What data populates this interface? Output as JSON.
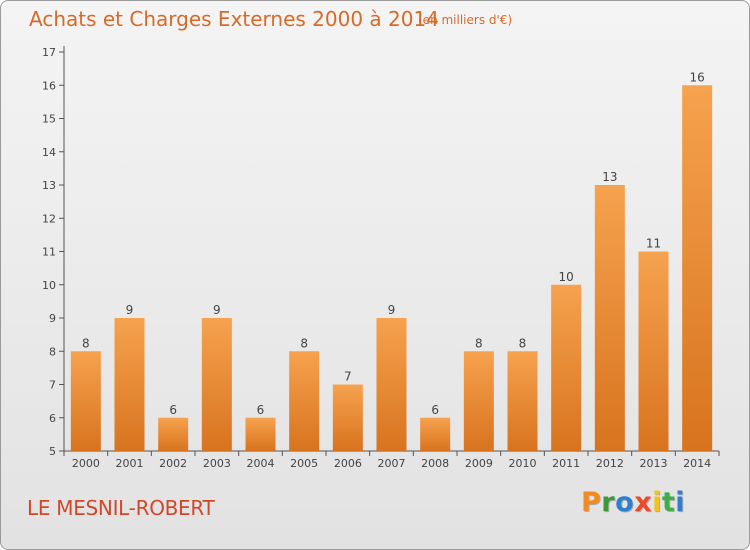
{
  "chart_data": {
    "type": "bar",
    "title": "Achats et Charges Externes 2000 à 2014",
    "subtitle": "(en milliers d'€)",
    "categories": [
      "2000",
      "2001",
      "2002",
      "2003",
      "2004",
      "2005",
      "2006",
      "2007",
      "2008",
      "2009",
      "2010",
      "2011",
      "2012",
      "2013",
      "2014"
    ],
    "values": [
      8,
      9,
      6,
      9,
      6,
      8,
      7,
      9,
      6,
      8,
      8,
      10,
      13,
      11,
      16
    ],
    "ylim": [
      5,
      17
    ],
    "yticks": [
      5,
      6,
      7,
      8,
      9,
      10,
      11,
      12,
      13,
      14,
      15,
      16,
      17
    ],
    "grid": false,
    "bar_color_top": "#f6a24e",
    "bar_color_bottom": "#d8731f"
  },
  "footer": {
    "place": "LE MESNIL-ROBERT",
    "logo_letters": [
      {
        "char": "P",
        "color": "#f28a1e"
      },
      {
        "char": "r",
        "color": "#3a9a3a"
      },
      {
        "char": "o",
        "color": "#2e7fd0"
      },
      {
        "char": "x",
        "color": "#e94b2c"
      },
      {
        "char": "i",
        "color": "#f2c21e"
      },
      {
        "char": "t",
        "color": "#3fae49"
      },
      {
        "char": "i",
        "color": "#2e7fd0"
      }
    ]
  }
}
